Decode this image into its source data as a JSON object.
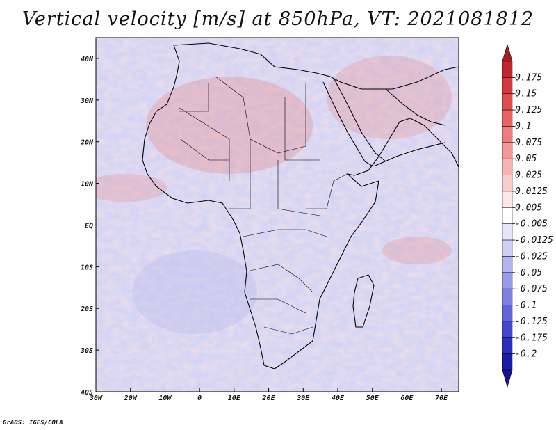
{
  "title": "Vertical velocity [m/s] at 850hPa, VT: 2021081812",
  "credit": "GrADS: IGES/COLA",
  "map": {
    "lon_range": [
      -30,
      75
    ],
    "lat_range": [
      -40,
      45
    ],
    "x_ticks": [
      {
        "lon": -30,
        "label": "30W"
      },
      {
        "lon": -20,
        "label": "20W"
      },
      {
        "lon": -10,
        "label": "10W"
      },
      {
        "lon": 0,
        "label": "0"
      },
      {
        "lon": 10,
        "label": "10E"
      },
      {
        "lon": 20,
        "label": "20E"
      },
      {
        "lon": 30,
        "label": "30E"
      },
      {
        "lon": 40,
        "label": "40E"
      },
      {
        "lon": 50,
        "label": "50E"
      },
      {
        "lon": 60,
        "label": "60E"
      },
      {
        "lon": 70,
        "label": "70E"
      }
    ],
    "y_ticks": [
      {
        "lat": 40,
        "label": "40N"
      },
      {
        "lat": 30,
        "label": "30N"
      },
      {
        "lat": 20,
        "label": "20N"
      },
      {
        "lat": 10,
        "label": "10N"
      },
      {
        "lat": 0,
        "label": "EQ"
      },
      {
        "lat": -10,
        "label": "10S"
      },
      {
        "lat": -20,
        "label": "20S"
      },
      {
        "lat": -30,
        "label": "30S"
      },
      {
        "lat": -40,
        "label": "40S"
      }
    ]
  },
  "colorbar": {
    "levels": [
      "0.175",
      "0.15",
      "0.125",
      "0.1",
      "0.075",
      "0.05",
      "0.025",
      "0.0125",
      "0.005",
      "-0.005",
      "-0.0125",
      "-0.025",
      "-0.05",
      "-0.075",
      "-0.1",
      "-0.125",
      "-0.175",
      "-0.2"
    ],
    "colors": [
      "#c0262b",
      "#d6393b",
      "#e04b4c",
      "#e86464",
      "#ee7e7e",
      "#f29898",
      "#f6b4b4",
      "#f9cdcd",
      "#fce6e6",
      "#ffffff",
      "#e6e6fa",
      "#cfcff6",
      "#b4b4f0",
      "#9a9aea",
      "#8080e4",
      "#6464da",
      "#4646cc",
      "#2d2dbb",
      "#1a1aa6"
    ],
    "top_arrow_color": "#a81c22",
    "bottom_arrow_color": "#14149a"
  }
}
